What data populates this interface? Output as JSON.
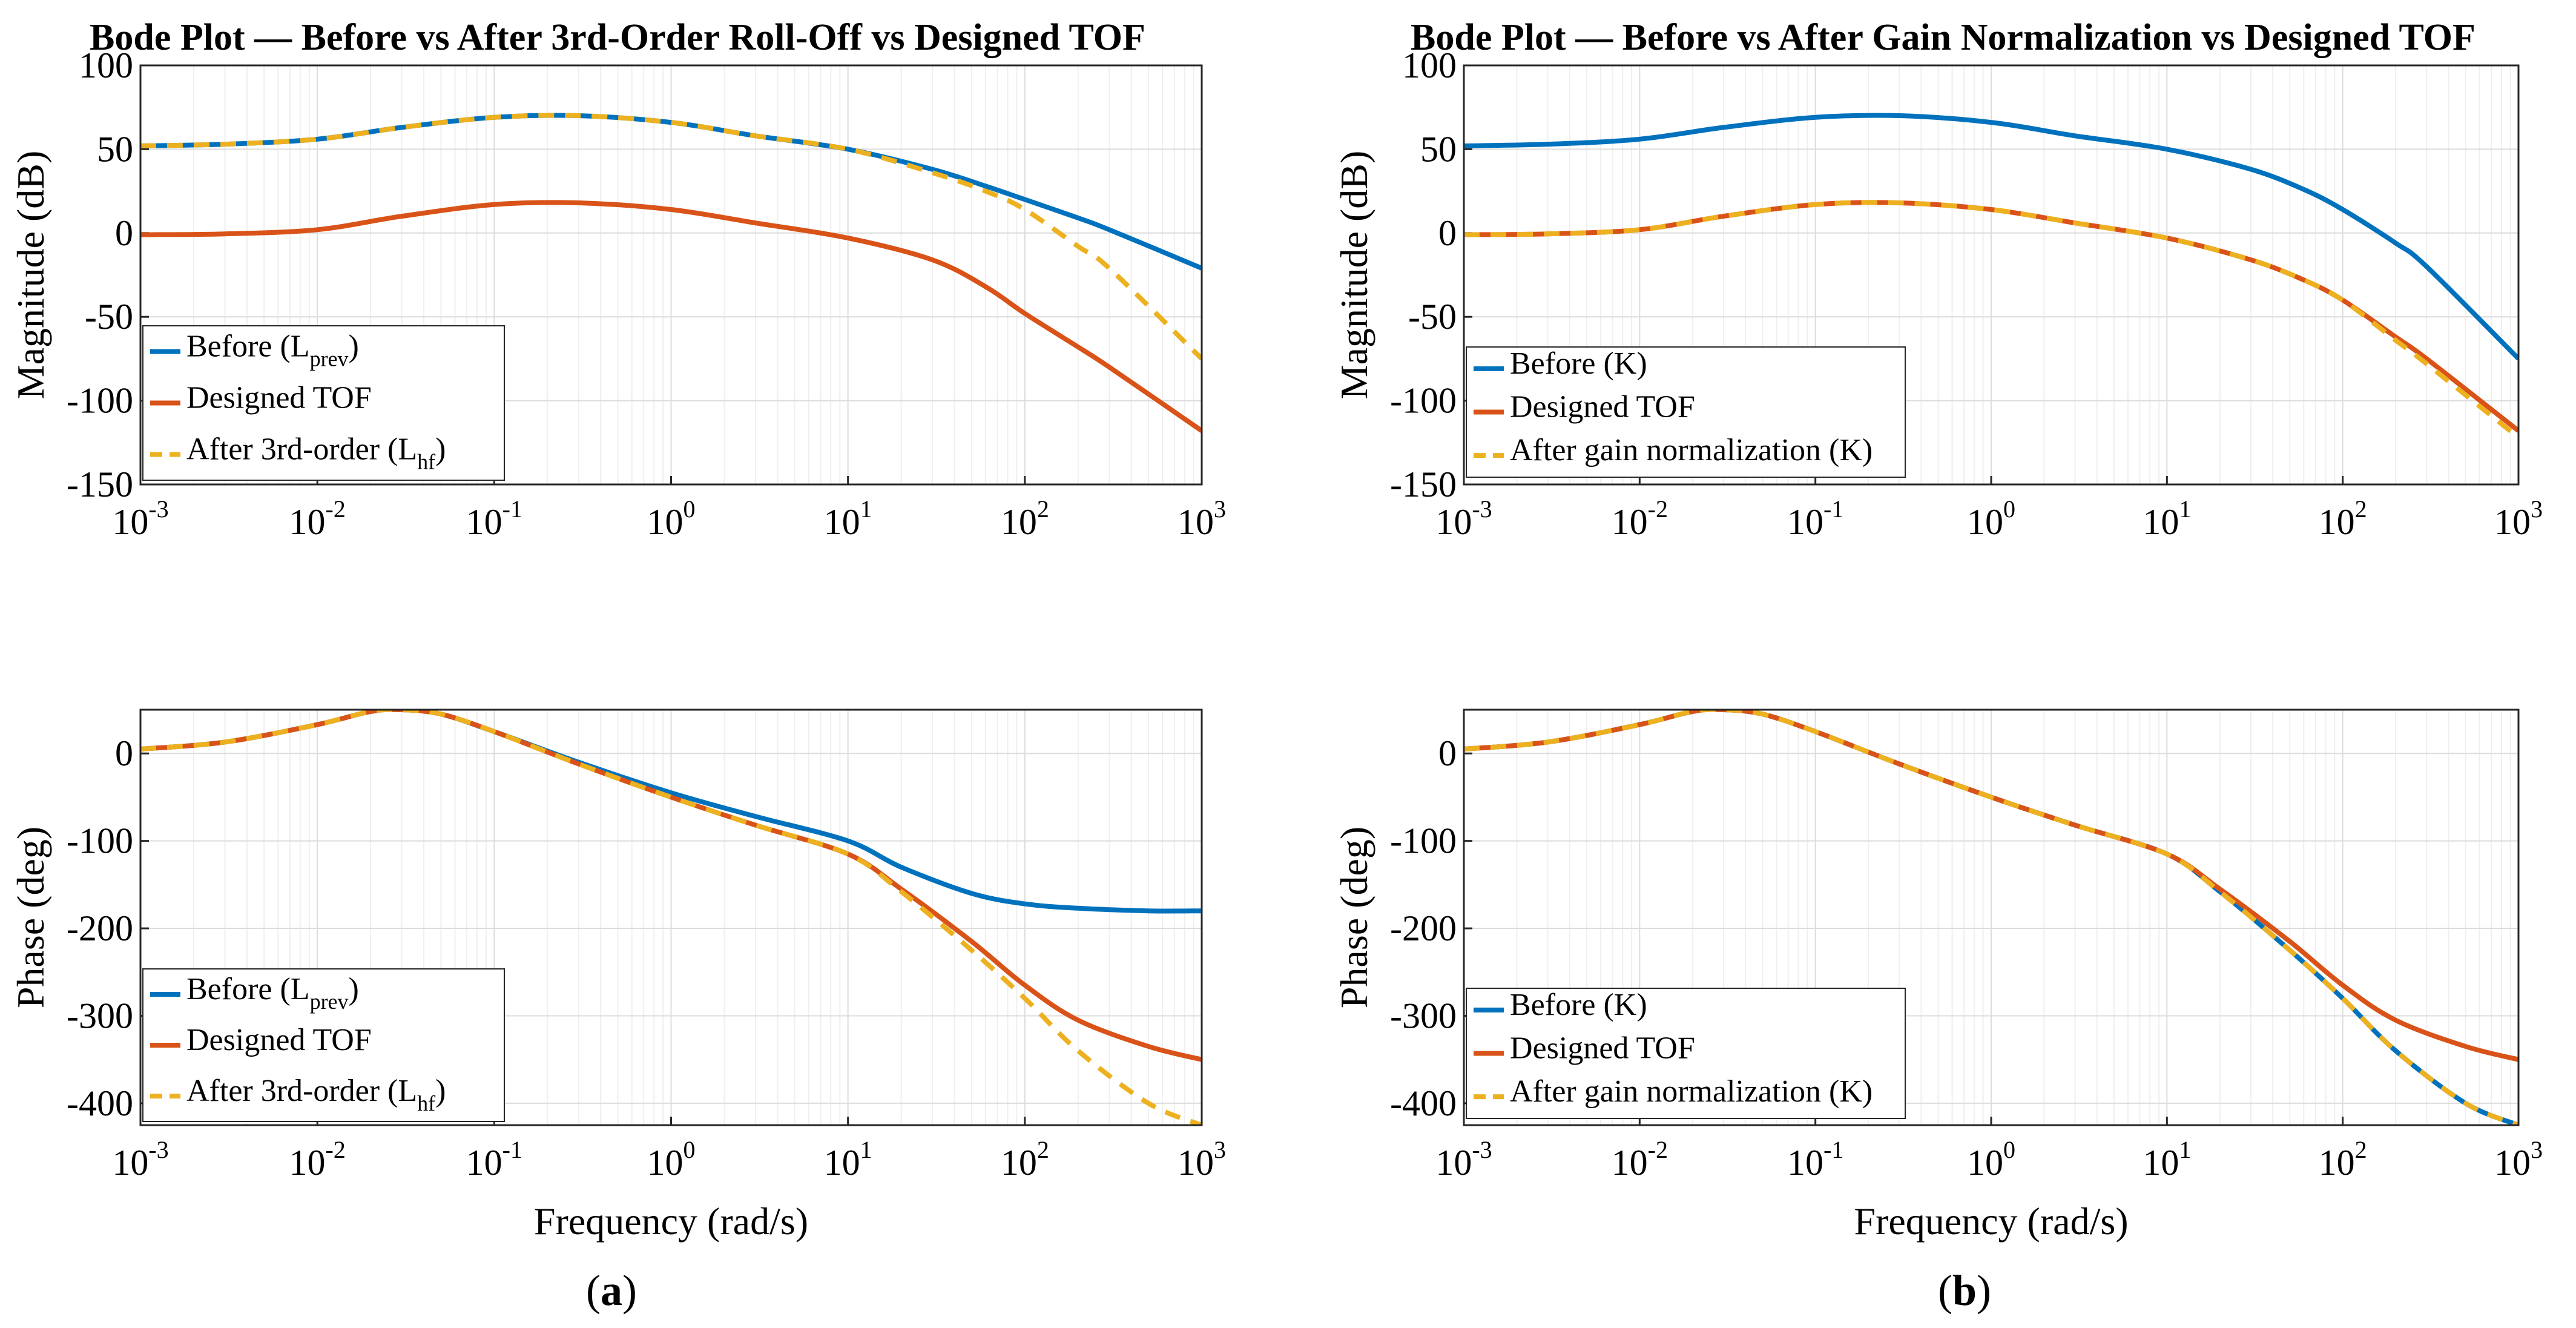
{
  "captions": {
    "a": "a",
    "b": "b"
  },
  "chart_data": [
    {
      "type": "line",
      "id": "a-mag",
      "title": "Bode Plot — Before vs After 3rd-Order Roll-Off vs Designed TOF",
      "xlabel": "",
      "ylabel": "Magnitude (dB)",
      "xscale": "log",
      "xlim": [
        0.001,
        1000
      ],
      "ylim": [
        -150,
        100
      ],
      "yticks": [
        "100",
        "50",
        "0",
        "-50",
        "-100",
        "-150"
      ],
      "xticks": [
        "10",
        "10",
        "10",
        "10",
        "10",
        "10",
        "10"
      ],
      "xtick_exponents": [
        "-3",
        "-2",
        "-1",
        "0",
        "1",
        "2",
        "3"
      ],
      "grid": true,
      "legend_position": "lower-left",
      "legend": [
        {
          "main": "Before (L",
          "sub": "prev",
          "tail": ")"
        },
        {
          "main": "Designed TOF",
          "sub": "",
          "tail": ""
        },
        {
          "main": "After 3rd-order (L",
          "sub": "hf",
          "tail": ")"
        }
      ],
      "series": [
        {
          "name": "Before (Lprev)",
          "color": "#0072BD",
          "style": "solid",
          "x": [
            0.001,
            0.003,
            0.01,
            0.03,
            0.1,
            0.3,
            1,
            3,
            10,
            30,
            60,
            100,
            200,
            300,
            1000
          ],
          "y": [
            52,
            53,
            56,
            63,
            69,
            70,
            66,
            58,
            50,
            38,
            28,
            20,
            9,
            2,
            -21
          ]
        },
        {
          "name": "Designed TOF",
          "color": "#D95319",
          "style": "solid",
          "x": [
            0.001,
            0.003,
            0.01,
            0.03,
            0.1,
            0.3,
            1,
            3,
            10,
            30,
            60,
            100,
            200,
            300,
            1000
          ],
          "y": [
            -1,
            -0.5,
            2,
            10,
            17,
            18,
            14,
            6,
            -3,
            -16,
            -32,
            -48,
            -68,
            -80,
            -118
          ]
        },
        {
          "name": "After 3rd-order (Lhf)",
          "color": "#EDB120",
          "style": "dashed",
          "x": [
            0.001,
            0.003,
            0.01,
            0.03,
            0.1,
            0.3,
            1,
            3,
            10,
            30,
            60,
            100,
            200,
            300,
            1000
          ],
          "y": [
            52,
            53,
            56,
            63,
            69,
            70,
            66,
            58,
            50,
            36,
            25,
            14,
            -8,
            -21,
            -75
          ]
        }
      ]
    },
    {
      "type": "line",
      "id": "a-phase",
      "title": "",
      "xlabel": "Frequency (rad/s)",
      "ylabel": "Phase (deg)",
      "xscale": "log",
      "xlim": [
        0.001,
        1000
      ],
      "ylim": [
        -425,
        50
      ],
      "yticks": [
        "0",
        "-100",
        "-200",
        "-300",
        "-400"
      ],
      "xticks": [
        "10",
        "10",
        "10",
        "10",
        "10",
        "10",
        "10"
      ],
      "xtick_exponents": [
        "-3",
        "-2",
        "-1",
        "0",
        "1",
        "2",
        "3"
      ],
      "grid": true,
      "legend_position": "lower-left",
      "legend": [
        {
          "main": "Before (L",
          "sub": "prev",
          "tail": ")"
        },
        {
          "main": "Designed TOF",
          "sub": "",
          "tail": ""
        },
        {
          "main": "After 3rd-order (L",
          "sub": "hf",
          "tail": ")"
        }
      ],
      "series": [
        {
          "name": "Before (Lprev)",
          "color": "#0072BD",
          "style": "solid",
          "x": [
            0.001,
            0.003,
            0.01,
            0.02,
            0.03,
            0.05,
            0.1,
            0.3,
            1,
            3,
            10,
            20,
            50,
            100,
            200,
            500,
            1000
          ],
          "y": [
            5,
            13,
            33,
            48,
            50,
            45,
            25,
            -10,
            -45,
            -72,
            -100,
            -130,
            -160,
            -172,
            -177,
            -180,
            -180
          ]
        },
        {
          "name": "Designed TOF",
          "color": "#D95319",
          "style": "solid",
          "x": [
            0.001,
            0.003,
            0.01,
            0.02,
            0.03,
            0.05,
            0.1,
            0.3,
            1,
            3,
            10,
            20,
            50,
            100,
            200,
            500,
            1000
          ],
          "y": [
            5,
            13,
            33,
            48,
            50,
            45,
            25,
            -12,
            -50,
            -82,
            -115,
            -155,
            -215,
            -265,
            -305,
            -335,
            -350
          ]
        },
        {
          "name": "After 3rd-order (Lhf)",
          "color": "#EDB120",
          "style": "dashed",
          "x": [
            0.001,
            0.003,
            0.01,
            0.02,
            0.03,
            0.05,
            0.1,
            0.3,
            1,
            3,
            10,
            20,
            50,
            100,
            200,
            500,
            1000
          ],
          "y": [
            5,
            13,
            33,
            48,
            50,
            45,
            25,
            -12,
            -50,
            -82,
            -115,
            -158,
            -225,
            -280,
            -340,
            -400,
            -425
          ]
        }
      ]
    },
    {
      "type": "line",
      "id": "b-mag",
      "title": "Bode Plot — Before vs After Gain Normalization vs Designed TOF",
      "xlabel": "",
      "ylabel": "Magnitude (dB)",
      "xscale": "log",
      "xlim": [
        0.001,
        1000
      ],
      "ylim": [
        -150,
        100
      ],
      "yticks": [
        "100",
        "50",
        "0",
        "-50",
        "-100",
        "-150"
      ],
      "xticks": [
        "10",
        "10",
        "10",
        "10",
        "10",
        "10",
        "10"
      ],
      "xtick_exponents": [
        "-3",
        "-2",
        "-1",
        "0",
        "1",
        "2",
        "3"
      ],
      "grid": true,
      "legend_position": "lower-left",
      "legend": [
        {
          "main": "Before (K)",
          "sub": "",
          "tail": ""
        },
        {
          "main": "Designed TOF",
          "sub": "",
          "tail": ""
        },
        {
          "main": "After gain normalization (K)",
          "sub": "",
          "tail": ""
        }
      ],
      "series": [
        {
          "name": "Before (K)",
          "color": "#0072BD",
          "style": "solid",
          "x": [
            0.001,
            0.003,
            0.01,
            0.03,
            0.1,
            0.3,
            1,
            3,
            10,
            30,
            60,
            100,
            200,
            300,
            1000
          ],
          "y": [
            52,
            53,
            56,
            63,
            69,
            70,
            66,
            58,
            50,
            38,
            26,
            14,
            -6,
            -20,
            -75
          ]
        },
        {
          "name": "Designed TOF",
          "color": "#D95319",
          "style": "solid",
          "x": [
            0.001,
            0.003,
            0.01,
            0.03,
            0.1,
            0.3,
            1,
            3,
            10,
            30,
            60,
            100,
            200,
            300,
            1000
          ],
          "y": [
            -1,
            -0.5,
            2,
            10,
            17,
            18,
            14,
            6,
            -3,
            -16,
            -28,
            -40,
            -62,
            -75,
            -118
          ]
        },
        {
          "name": "After gain normalization (K)",
          "color": "#EDB120",
          "style": "dashed",
          "x": [
            0.001,
            0.003,
            0.01,
            0.03,
            0.1,
            0.3,
            1,
            3,
            10,
            30,
            60,
            100,
            200,
            300,
            1000
          ],
          "y": [
            -1,
            -0.5,
            2,
            10,
            17,
            18,
            14,
            6,
            -3,
            -16,
            -28,
            -40,
            -64,
            -78,
            -122
          ]
        }
      ]
    },
    {
      "type": "line",
      "id": "b-phase",
      "title": "",
      "xlabel": "Frequency (rad/s)",
      "ylabel": "Phase (deg)",
      "xscale": "log",
      "xlim": [
        0.001,
        1000
      ],
      "ylim": [
        -425,
        50
      ],
      "yticks": [
        "0",
        "-100",
        "-200",
        "-300",
        "-400"
      ],
      "xticks": [
        "10",
        "10",
        "10",
        "10",
        "10",
        "10",
        "10"
      ],
      "xtick_exponents": [
        "-3",
        "-2",
        "-1",
        "0",
        "1",
        "2",
        "3"
      ],
      "grid": true,
      "legend_position": "lower-left",
      "legend": [
        {
          "main": "Before (K)",
          "sub": "",
          "tail": ""
        },
        {
          "main": "Designed TOF",
          "sub": "",
          "tail": ""
        },
        {
          "main": "After gain normalization (K)",
          "sub": "",
          "tail": ""
        }
      ],
      "series": [
        {
          "name": "Before (K)",
          "color": "#0072BD",
          "style": "solid",
          "x": [
            0.001,
            0.003,
            0.01,
            0.02,
            0.03,
            0.05,
            0.1,
            0.3,
            1,
            3,
            10,
            20,
            50,
            100,
            200,
            500,
            1000
          ],
          "y": [
            5,
            13,
            33,
            48,
            50,
            45,
            25,
            -12,
            -50,
            -82,
            -115,
            -158,
            -225,
            -280,
            -340,
            -400,
            -425
          ]
        },
        {
          "name": "Designed TOF",
          "color": "#D95319",
          "style": "solid",
          "x": [
            0.001,
            0.003,
            0.01,
            0.02,
            0.03,
            0.05,
            0.1,
            0.3,
            1,
            3,
            10,
            20,
            50,
            100,
            200,
            500,
            1000
          ],
          "y": [
            5,
            13,
            33,
            48,
            50,
            45,
            25,
            -12,
            -50,
            -82,
            -115,
            -155,
            -215,
            -265,
            -305,
            -335,
            -350
          ]
        },
        {
          "name": "After gain normalization (K)",
          "color": "#EDB120",
          "style": "dashed",
          "x": [
            0.001,
            0.003,
            0.01,
            0.02,
            0.03,
            0.05,
            0.1,
            0.3,
            1,
            3,
            10,
            20,
            50,
            100,
            200,
            500,
            1000
          ],
          "y": [
            5,
            13,
            33,
            48,
            50,
            45,
            25,
            -12,
            -50,
            -82,
            -115,
            -158,
            -225,
            -280,
            -340,
            -400,
            -425
          ]
        }
      ]
    }
  ]
}
